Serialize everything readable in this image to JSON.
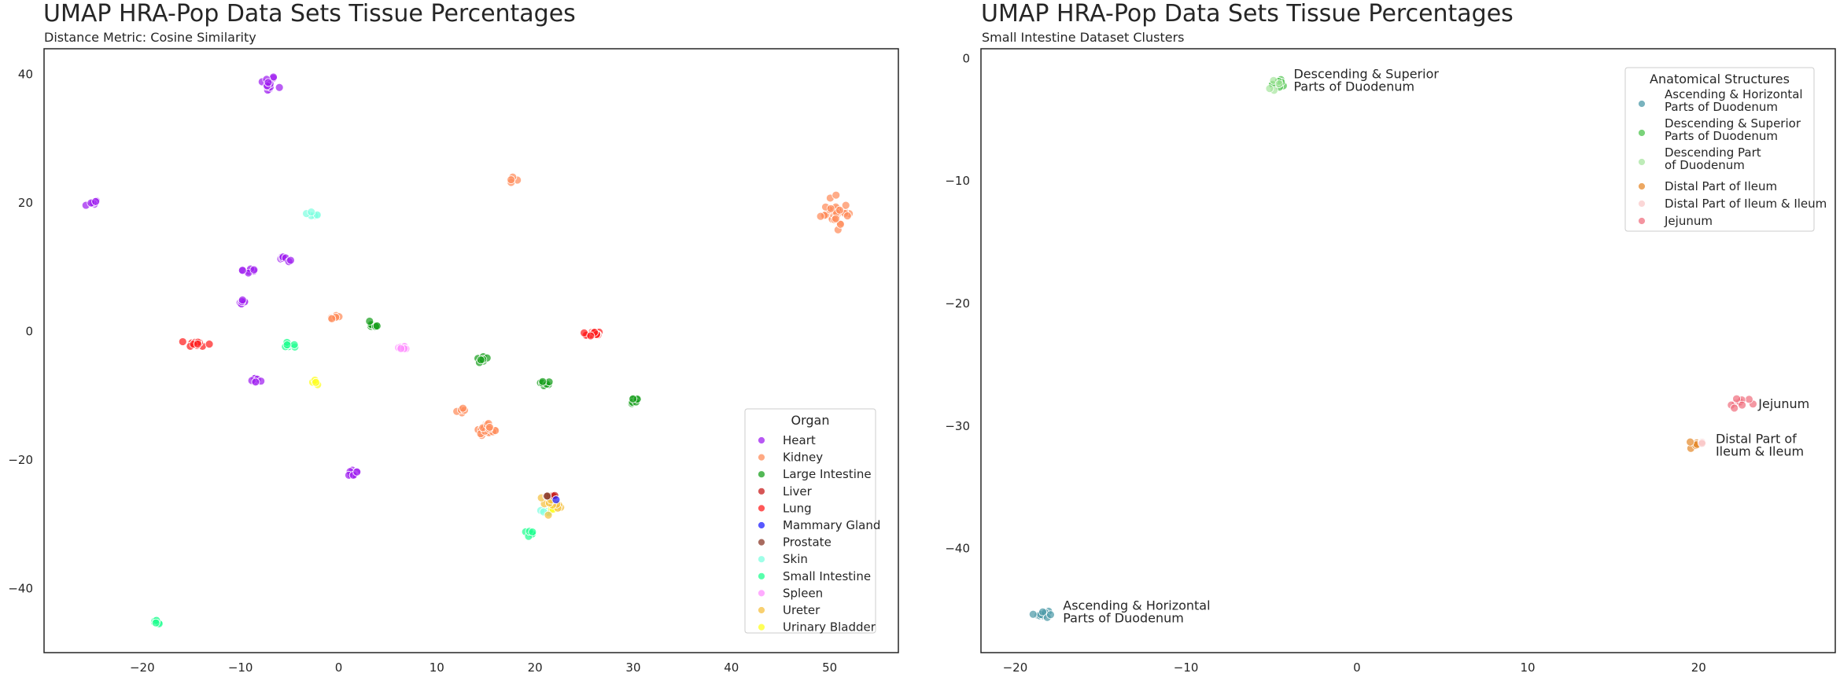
{
  "chart_data": [
    {
      "type": "scatter",
      "title": "UMAP HRA-Pop Data Sets Tissue Percentages",
      "subtitle": "Distance Metric: Cosine Similarity",
      "xlim": [
        -30,
        57
      ],
      "ylim": [
        -50,
        44
      ],
      "xticks": [
        -20,
        -10,
        0,
        10,
        20,
        30,
        40,
        50
      ],
      "yticks": [
        -40,
        -20,
        0,
        20,
        40
      ],
      "grid": false,
      "legend": {
        "title": "Organ",
        "placement": "lower-right",
        "entries": [
          {
            "label": "Heart",
            "color": "#a020f0"
          },
          {
            "label": "Kidney",
            "color": "#ff8c5a"
          },
          {
            "label": "Large Intestine",
            "color": "#19a01e"
          },
          {
            "label": "Liver",
            "color": "#c81e1e"
          },
          {
            "label": "Lung",
            "color": "#ff2020"
          },
          {
            "label": "Mammary Gland",
            "color": "#2020ff"
          },
          {
            "label": "Prostate",
            "color": "#8b3a2a"
          },
          {
            "label": "Skin",
            "color": "#7fffe0"
          },
          {
            "label": "Small Intestine",
            "color": "#20ff90"
          },
          {
            "label": "Spleen",
            "color": "#ff90ff"
          },
          {
            "label": "Ureter",
            "color": "#f5c040"
          },
          {
            "label": "Urinary Bladder",
            "color": "#ffff20"
          }
        ]
      },
      "clusters": [
        {
          "organ": "Heart",
          "x": -7.2,
          "y": 38.5,
          "n": 14,
          "sx": 0.7,
          "sy": 1.2
        },
        {
          "organ": "Heart",
          "x": -25.0,
          "y": 20.0,
          "n": 6,
          "sx": 0.5,
          "sy": 0.4
        },
        {
          "organ": "Heart",
          "x": -9.2,
          "y": 9.5,
          "n": 7,
          "sx": 0.5,
          "sy": 0.5
        },
        {
          "organ": "Heart",
          "x": -5.5,
          "y": 11.3,
          "n": 7,
          "sx": 0.5,
          "sy": 0.5
        },
        {
          "organ": "Heart",
          "x": -9.8,
          "y": 4.5,
          "n": 6,
          "sx": 0.4,
          "sy": 0.4
        },
        {
          "organ": "Heart",
          "x": -8.5,
          "y": -7.5,
          "n": 7,
          "sx": 0.5,
          "sy": 0.5
        },
        {
          "organ": "Heart",
          "x": 1.5,
          "y": -22.0,
          "n": 8,
          "sx": 0.6,
          "sy": 0.5
        },
        {
          "organ": "Kidney",
          "x": 50.5,
          "y": 18.5,
          "n": 34,
          "sx": 1.5,
          "sy": 1.5
        },
        {
          "organ": "Kidney",
          "x": 17.8,
          "y": 23.8,
          "n": 4,
          "sx": 0.4,
          "sy": 0.4
        },
        {
          "organ": "Kidney",
          "x": -0.5,
          "y": 2.0,
          "n": 5,
          "sx": 0.4,
          "sy": 0.4
        },
        {
          "organ": "Kidney",
          "x": 12.5,
          "y": -12.5,
          "n": 5,
          "sx": 0.5,
          "sy": 0.4
        },
        {
          "organ": "Kidney",
          "x": 15.0,
          "y": -15.2,
          "n": 30,
          "sx": 0.9,
          "sy": 0.8
        },
        {
          "organ": "Large Intestine",
          "x": 3.5,
          "y": 1.0,
          "n": 10,
          "sx": 0.6,
          "sy": 0.5
        },
        {
          "organ": "Large Intestine",
          "x": 14.8,
          "y": -4.5,
          "n": 7,
          "sx": 0.5,
          "sy": 0.5
        },
        {
          "organ": "Large Intestine",
          "x": 21.2,
          "y": -8.0,
          "n": 8,
          "sx": 0.6,
          "sy": 0.4
        },
        {
          "organ": "Large Intestine",
          "x": 30.0,
          "y": -10.7,
          "n": 7,
          "sx": 0.5,
          "sy": 0.4
        },
        {
          "organ": "Lung",
          "x": -14.5,
          "y": -2.0,
          "n": 14,
          "sx": 1.1,
          "sy": 0.4
        },
        {
          "organ": "Lung",
          "x": 26.0,
          "y": -0.3,
          "n": 14,
          "sx": 0.6,
          "sy": 0.4
        },
        {
          "organ": "Skin",
          "x": -2.7,
          "y": 18.3,
          "n": 6,
          "sx": 0.4,
          "sy": 0.4
        },
        {
          "organ": "Skin",
          "x": 21.5,
          "y": -28.0,
          "n": 6,
          "sx": 0.8,
          "sy": 0.3
        },
        {
          "organ": "Small Intestine",
          "x": -5.0,
          "y": -2.2,
          "n": 8,
          "sx": 0.6,
          "sy": 0.4
        },
        {
          "organ": "Small Intestine",
          "x": 19.5,
          "y": -31.5,
          "n": 7,
          "sx": 0.5,
          "sy": 0.4
        },
        {
          "organ": "Small Intestine",
          "x": -18.5,
          "y": -45.2,
          "n": 9,
          "sx": 0.5,
          "sy": 0.4
        },
        {
          "organ": "Spleen",
          "x": 6.5,
          "y": -2.7,
          "n": 8,
          "sx": 0.6,
          "sy": 0.3
        },
        {
          "organ": "Urinary Bladder",
          "x": -2.2,
          "y": -8.0,
          "n": 4,
          "sx": 0.3,
          "sy": 0.3
        },
        {
          "organ": "Urinary Bladder",
          "x": 21.8,
          "y": -27.5,
          "n": 4,
          "sx": 0.5,
          "sy": 0.3
        },
        {
          "organ": "Ureter",
          "x": 21.8,
          "y": -26.5,
          "n": 14,
          "sx": 0.8,
          "sy": 1.2
        },
        {
          "organ": "Liver",
          "x": 21.8,
          "y": -25.6,
          "n": 3,
          "sx": 0.3,
          "sy": 0.2
        },
        {
          "organ": "Prostate",
          "x": 21.2,
          "y": -25.6,
          "n": 2,
          "sx": 0.2,
          "sy": 0.1
        },
        {
          "organ": "Mammary Gland",
          "x": 22.2,
          "y": -26.3,
          "n": 1,
          "sx": 0.1,
          "sy": 0.1
        }
      ]
    },
    {
      "type": "scatter",
      "title": "UMAP HRA-Pop Data Sets Tissue Percentages",
      "subtitle": "Small Intestine Dataset Clusters",
      "xlim": [
        -22,
        28
      ],
      "ylim": [
        -48.5,
        0.8
      ],
      "xticks": [
        -20,
        -10,
        0,
        10,
        20
      ],
      "yticks": [
        0,
        -10,
        -20,
        -30,
        -40
      ],
      "grid": false,
      "legend": {
        "title": "Anatomical Structures",
        "placement": "upper-right",
        "entries": [
          {
            "label_lines": [
              "Ascending & Horizontal",
              "Parts of Duodenum"
            ],
            "color": "#4c9aa8"
          },
          {
            "label_lines": [
              "Descending & Superior",
              "Parts of Duodenum"
            ],
            "color": "#4dc44d"
          },
          {
            "label_lines": [
              "Descending Part",
              "of Duodenum"
            ],
            "color": "#a8e6a0"
          },
          {
            "label_lines": [
              "Distal Part of Ileum"
            ],
            "color": "#e58a2e"
          },
          {
            "label_lines": [
              "Distal Part of Ileum & Ileum"
            ],
            "color": "#f9c9c9"
          },
          {
            "label_lines": [
              "Jejunum"
            ],
            "color": "#f07080"
          }
        ]
      },
      "clusters": [
        {
          "structure": "Descending & Superior Parts of Duodenum",
          "x": -4.5,
          "y": -2.0,
          "n": 8,
          "sx": 0.5,
          "sy": 0.35
        },
        {
          "structure": "Descending Part of Duodenum",
          "x": -4.7,
          "y": -2.1,
          "n": 4,
          "sx": 0.5,
          "sy": 0.35
        },
        {
          "structure": "Jejunum",
          "x": 22.2,
          "y": -28.0,
          "n": 10,
          "sx": 0.6,
          "sy": 0.4
        },
        {
          "structure": "Distal Part of Ileum",
          "x": 19.8,
          "y": -31.6,
          "n": 6,
          "sx": 0.3,
          "sy": 0.3
        },
        {
          "structure": "Distal Part of Ileum & Ileum",
          "x": 20.1,
          "y": -31.3,
          "n": 3,
          "sx": 0.3,
          "sy": 0.3
        },
        {
          "structure": "Ascending & Horizontal Parts of Duodenum",
          "x": -18.4,
          "y": -45.3,
          "n": 11,
          "sx": 0.45,
          "sy": 0.4
        }
      ],
      "annotations": [
        {
          "lines": [
            "Descending & Superior",
            "Parts of Duodenum"
          ],
          "x": -3.7,
          "y": -1.8
        },
        {
          "lines": [
            "Jejunum"
          ],
          "x": 23.5,
          "y": -28.2
        },
        {
          "lines": [
            "Distal Part of",
            "Ileum & Ileum"
          ],
          "x": 21.0,
          "y": -31.6
        },
        {
          "lines": [
            "Ascending & Horizontal",
            "Parts of Duodenum"
          ],
          "x": -17.2,
          "y": -45.2
        }
      ]
    }
  ]
}
